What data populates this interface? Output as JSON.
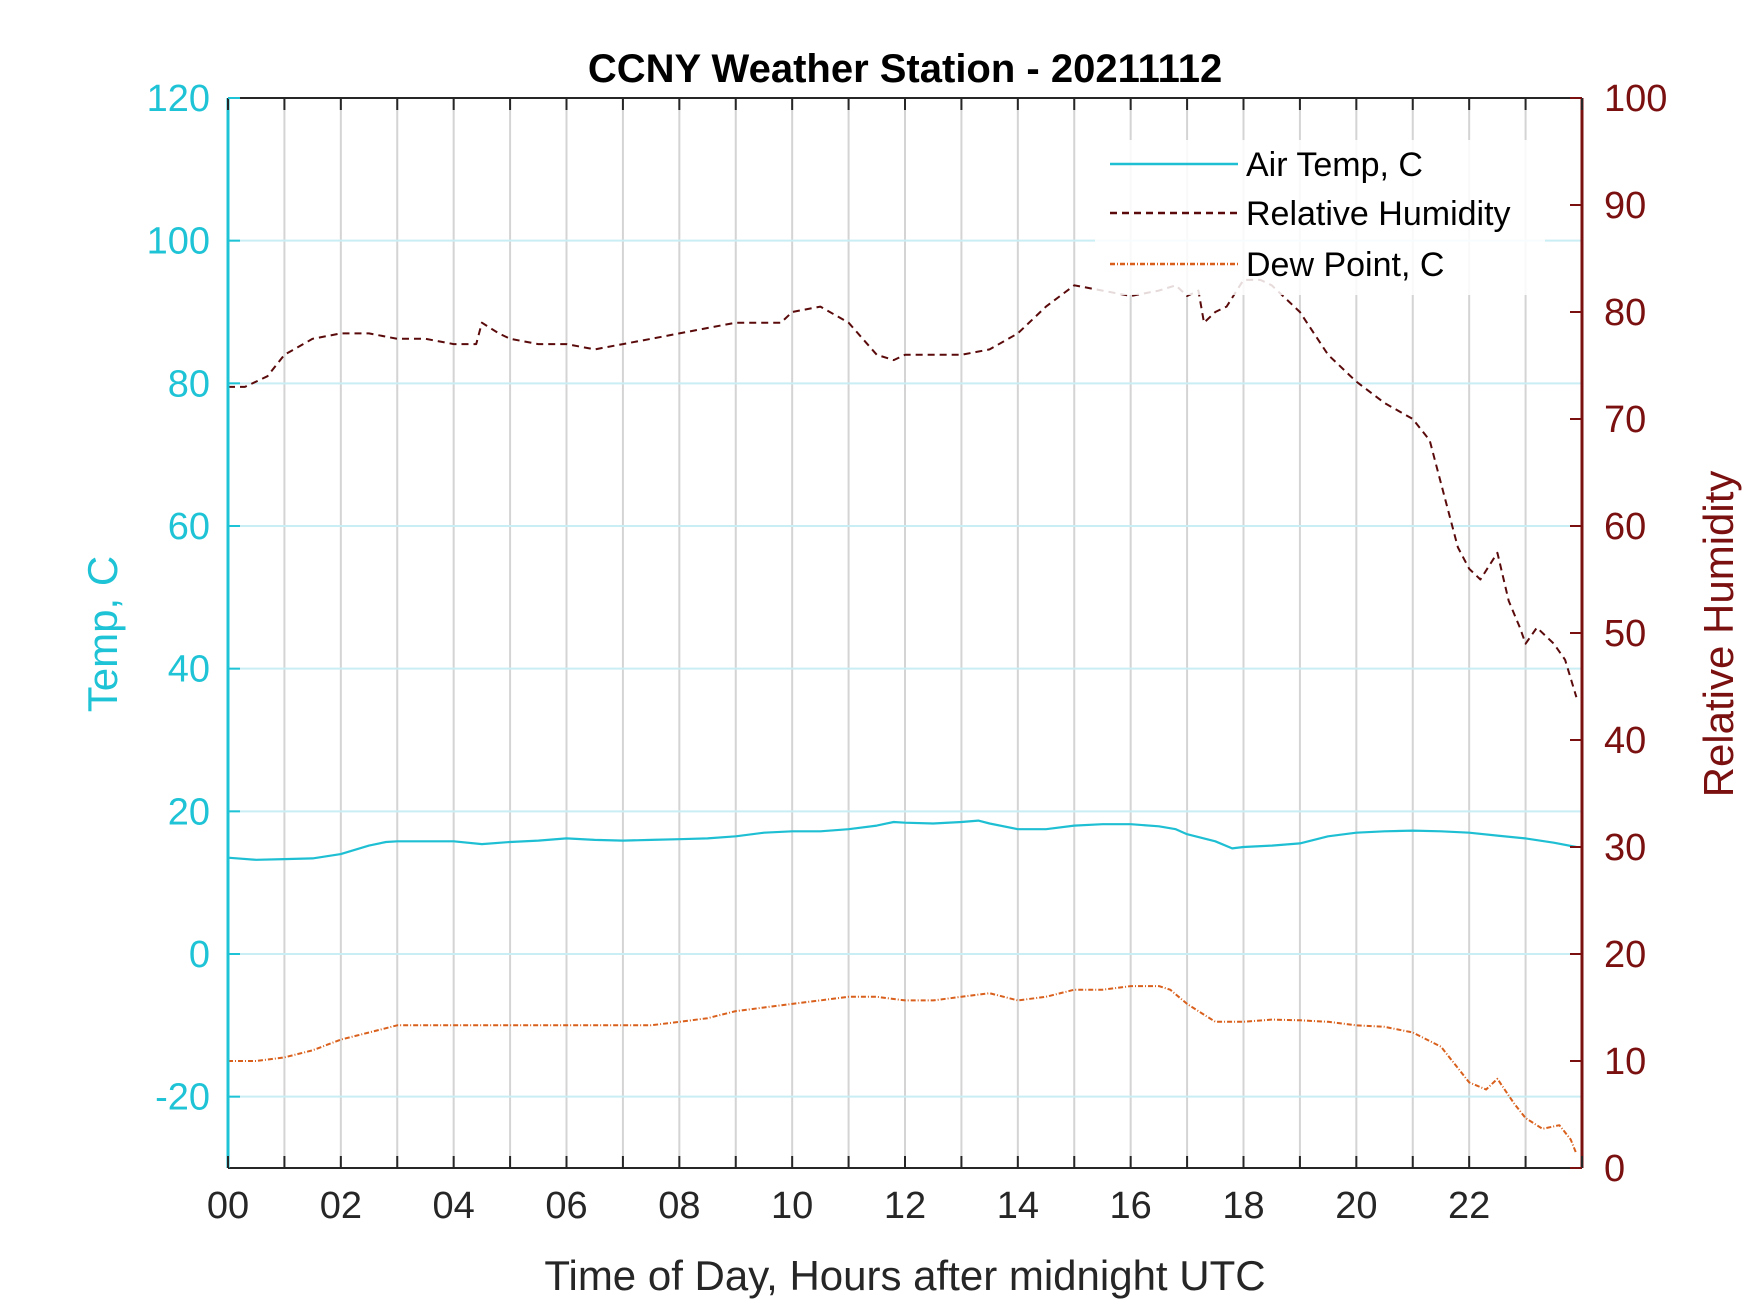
{
  "chart_data": {
    "type": "line",
    "title": "CCNY Weather Station - 20211112",
    "xlabel": "Time of Day, Hours after midnight UTC",
    "ylabel_left": "Temp, C",
    "ylabel_right": "Relative Humidity",
    "xlim": [
      0,
      24
    ],
    "ylim_left": [
      -30,
      120
    ],
    "ylim_right": [
      0,
      100
    ],
    "x_ticks": [
      "00",
      "02",
      "04",
      "06",
      "08",
      "10",
      "12",
      "14",
      "16",
      "18",
      "20",
      "22"
    ],
    "y_ticks_left": [
      "-20",
      "0",
      "20",
      "40",
      "60",
      "80",
      "100",
      "120"
    ],
    "y_ticks_right": [
      "0",
      "10",
      "20",
      "30",
      "40",
      "50",
      "60",
      "70",
      "80",
      "90",
      "100"
    ],
    "grid": true,
    "legend_position": "top-right",
    "colors": {
      "left_axis": "#1fc3d6",
      "right_axis": "#7a1010",
      "air_temp": "#1fbfd3",
      "relative_humidity": "#5a0a0a",
      "dew_point": "#d9601c",
      "grid_vertical": "#d4d4d4",
      "grid_horizontal": "#c9eef4"
    },
    "series": [
      {
        "name": "Air Temp, C",
        "axis": "left",
        "style": "solid",
        "x": [
          0,
          0.5,
          1,
          1.5,
          2,
          2.5,
          2.8,
          3,
          3.5,
          4,
          4.5,
          5,
          5.5,
          6,
          6.5,
          7,
          7.5,
          8,
          8.5,
          9,
          9.5,
          10,
          10.5,
          11,
          11.5,
          11.8,
          12,
          12.5,
          13,
          13.3,
          13.5,
          14,
          14.5,
          15,
          15.5,
          16,
          16.5,
          16.8,
          17,
          17.5,
          17.8,
          18,
          18.5,
          19,
          19.5,
          20,
          20.5,
          21,
          21.5,
          22,
          22.5,
          23,
          23.5,
          23.9
        ],
        "y": [
          13.5,
          13.2,
          13.3,
          13.4,
          14,
          15.2,
          15.7,
          15.8,
          15.8,
          15.8,
          15.4,
          15.7,
          15.9,
          16.2,
          16,
          15.9,
          16,
          16.1,
          16.2,
          16.5,
          17,
          17.2,
          17.2,
          17.5,
          18,
          18.5,
          18.4,
          18.3,
          18.5,
          18.7,
          18.3,
          17.5,
          17.5,
          18,
          18.2,
          18.2,
          17.9,
          17.5,
          16.8,
          15.8,
          14.8,
          15,
          15.2,
          15.5,
          16.5,
          17,
          17.2,
          17.3,
          17.2,
          17,
          16.6,
          16.2,
          15.6,
          15
        ]
      },
      {
        "name": "Relative Humidity",
        "axis": "right",
        "style": "dashed",
        "x": [
          0,
          0.3,
          0.7,
          1,
          1.5,
          2,
          2.5,
          3,
          3.5,
          4,
          4.4,
          4.5,
          4.8,
          5,
          5.5,
          6,
          6.5,
          7,
          7.5,
          8,
          8.5,
          9,
          9.5,
          9.8,
          10,
          10.5,
          11,
          11.5,
          11.8,
          12,
          12.5,
          13,
          13.5,
          14,
          14.5,
          15,
          15.5,
          16,
          16.5,
          16.8,
          17,
          17.2,
          17.3,
          17.5,
          17.7,
          18,
          18.3,
          18.5,
          19,
          19.5,
          20,
          20.5,
          21,
          21.3,
          21.6,
          21.8,
          22,
          22.2,
          22.5,
          22.7,
          22.9,
          23,
          23.2,
          23.5,
          23.7,
          23.9
        ],
        "y": [
          73,
          73,
          74,
          76,
          77.5,
          78,
          78,
          77.5,
          77.5,
          77,
          77,
          79,
          78,
          77.5,
          77,
          77,
          76.5,
          77,
          77.5,
          78,
          78.5,
          79,
          79,
          79,
          80,
          80.5,
          79,
          76,
          75.5,
          76,
          76,
          76,
          76.5,
          78,
          80.5,
          82.5,
          82,
          81.5,
          82,
          82.5,
          81.5,
          82,
          79,
          80,
          80.5,
          83,
          83,
          82.5,
          80,
          76,
          73.5,
          71.5,
          70,
          68,
          62,
          58,
          56,
          55,
          57.5,
          53,
          50.5,
          49,
          50.5,
          49,
          47.5,
          44
        ]
      },
      {
        "name": "Dew Point, C",
        "axis": "left",
        "style": "dashdot",
        "x": [
          0,
          0.5,
          1,
          1.5,
          2,
          2.5,
          3,
          3.5,
          4,
          4.5,
          5,
          5.5,
          6,
          6.5,
          7,
          7.5,
          8,
          8.5,
          9,
          9.5,
          10,
          10.5,
          11,
          11.5,
          12,
          12.5,
          13,
          13.5,
          14,
          14.5,
          15,
          15.5,
          16,
          16.5,
          16.7,
          17,
          17.2,
          17.5,
          18,
          18.5,
          19,
          19.5,
          20,
          20.5,
          21,
          21.5,
          21.8,
          22,
          22.3,
          22.5,
          22.8,
          23,
          23.3,
          23.6,
          23.8,
          23.9
        ],
        "y": [
          -15,
          -15,
          -14.5,
          -13.5,
          -12,
          -11,
          -10,
          -10,
          -10,
          -10,
          -10,
          -10,
          -10,
          -10,
          -10,
          -10,
          -9.5,
          -9,
          -8,
          -7.5,
          -7,
          -6.5,
          -6,
          -6,
          -6.5,
          -6.5,
          -6,
          -5.5,
          -6.5,
          -6,
          -5,
          -5,
          -4.5,
          -4.5,
          -5,
          -7,
          -8,
          -9.5,
          -9.5,
          -9.2,
          -9.3,
          -9.5,
          -10,
          -10.2,
          -11,
          -13,
          -16,
          -18,
          -19,
          -17.5,
          -21,
          -23,
          -24.5,
          -24,
          -26,
          -28
        ]
      }
    ]
  }
}
